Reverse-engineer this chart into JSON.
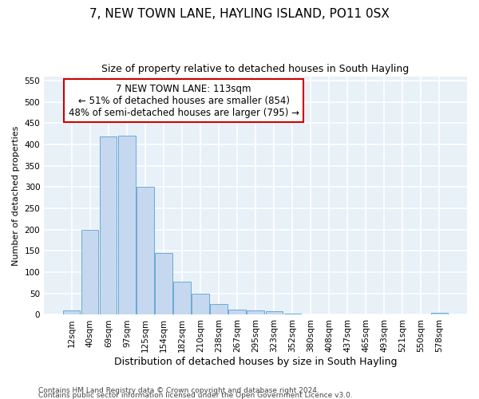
{
  "title": "7, NEW TOWN LANE, HAYLING ISLAND, PO11 0SX",
  "subtitle": "Size of property relative to detached houses in South Hayling",
  "xlabel": "Distribution of detached houses by size in South Hayling",
  "ylabel": "Number of detached properties",
  "categories": [
    "12sqm",
    "40sqm",
    "69sqm",
    "97sqm",
    "125sqm",
    "154sqm",
    "182sqm",
    "210sqm",
    "238sqm",
    "267sqm",
    "295sqm",
    "323sqm",
    "352sqm",
    "380sqm",
    "408sqm",
    "437sqm",
    "465sqm",
    "493sqm",
    "521sqm",
    "550sqm",
    "578sqm"
  ],
  "values": [
    10,
    200,
    418,
    420,
    300,
    145,
    78,
    50,
    25,
    13,
    10,
    8,
    3,
    0,
    0,
    0,
    0,
    0,
    0,
    0,
    4
  ],
  "bar_color": "#c5d8f0",
  "bar_edge_color": "#6aaad4",
  "background_color": "#ffffff",
  "plot_bg_color": "#e8f0f8",
  "grid_color": "#ffffff",
  "ylim": [
    0,
    560
  ],
  "yticks": [
    0,
    50,
    100,
    150,
    200,
    250,
    300,
    350,
    400,
    450,
    500,
    550
  ],
  "annotation_line1": "7 NEW TOWN LANE: 113sqm",
  "annotation_line2": "← 51% of detached houses are smaller (854)",
  "annotation_line3": "48% of semi-detached houses are larger (795) →",
  "annotation_box_color": "#cc0000",
  "footnote1": "Contains HM Land Registry data © Crown copyright and database right 2024.",
  "footnote2": "Contains public sector information licensed under the Open Government Licence v3.0.",
  "title_fontsize": 11,
  "subtitle_fontsize": 9,
  "xlabel_fontsize": 9,
  "ylabel_fontsize": 8,
  "tick_fontsize": 7.5,
  "annot_fontsize": 8.5,
  "footnote_fontsize": 6.5
}
